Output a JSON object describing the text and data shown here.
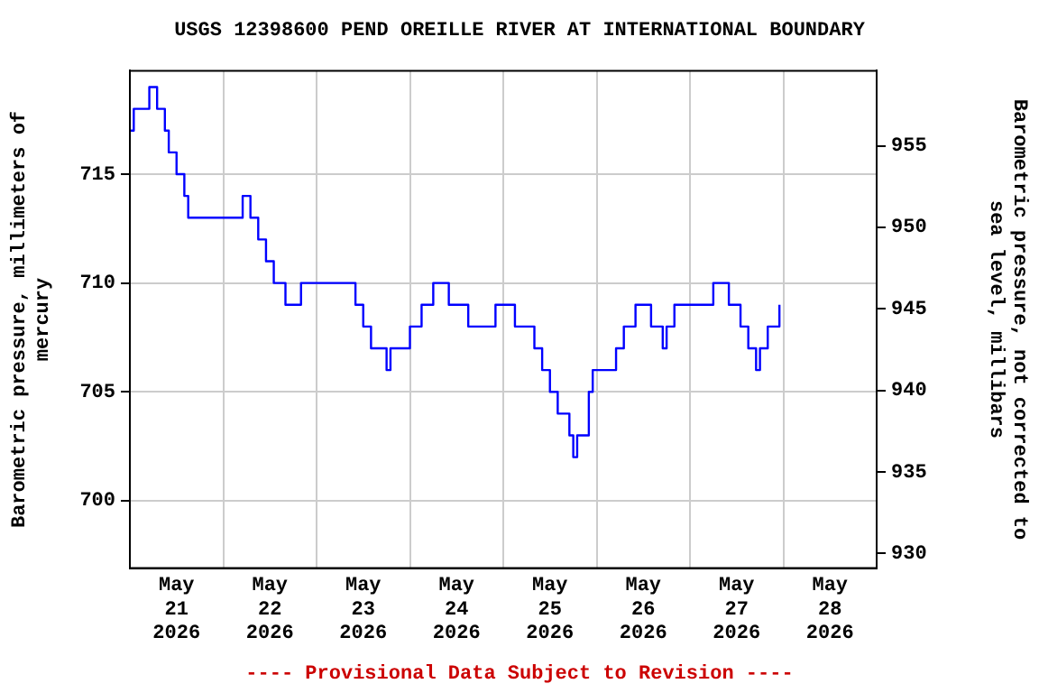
{
  "chart_data": {
    "type": "step",
    "title": "USGS 12398600 PEND OREILLE RIVER AT INTERNATIONAL BOUNDARY",
    "ylabel": "Barometric pressure, millimeters of mercury",
    "y2label": "Barometric pressure, not corrected to sea level, millibars",
    "annotations": [
      "---- Provisional Data Subject to Revision ----"
    ],
    "x": [
      "2026-05-21T00:00",
      "2026-05-21T01:00",
      "2026-05-21T05:00",
      "2026-05-21T07:00",
      "2026-05-21T09:00",
      "2026-05-21T10:00",
      "2026-05-21T12:00",
      "2026-05-21T14:00",
      "2026-05-21T15:00",
      "2026-05-22T05:00",
      "2026-05-22T07:00",
      "2026-05-22T09:00",
      "2026-05-22T11:00",
      "2026-05-22T13:00",
      "2026-05-22T16:00",
      "2026-05-22T20:00",
      "2026-05-23T10:00",
      "2026-05-23T12:00",
      "2026-05-23T14:00",
      "2026-05-23T18:00",
      "2026-05-23T19:00",
      "2026-05-24T00:00",
      "2026-05-24T03:00",
      "2026-05-24T06:00",
      "2026-05-24T10:00",
      "2026-05-24T15:00",
      "2026-05-24T22:00",
      "2026-05-25T03:00",
      "2026-05-25T08:00",
      "2026-05-25T10:00",
      "2026-05-25T12:00",
      "2026-05-25T14:00",
      "2026-05-25T17:00",
      "2026-05-25T18:00",
      "2026-05-25T19:00",
      "2026-05-25T22:00",
      "2026-05-25T23:00",
      "2026-05-26T05:00",
      "2026-05-26T07:00",
      "2026-05-26T10:00",
      "2026-05-26T14:00",
      "2026-05-26T17:00",
      "2026-05-26T18:00",
      "2026-05-26T20:00",
      "2026-05-27T06:00",
      "2026-05-27T10:00",
      "2026-05-27T13:00",
      "2026-05-27T15:00",
      "2026-05-27T17:00",
      "2026-05-27T18:00",
      "2026-05-27T20:00",
      "2026-05-27T23:00"
    ],
    "series": [
      {
        "color": "#0000ff",
        "values": [
          717,
          718,
          719,
          718,
          717,
          716,
          715,
          714,
          713,
          714,
          713,
          712,
          711,
          710,
          709,
          710,
          709,
          708,
          707,
          706,
          707,
          708,
          709,
          710,
          709,
          708,
          709,
          708,
          707,
          706,
          705,
          704,
          703,
          702,
          703,
          705,
          706,
          707,
          708,
          709,
          708,
          707,
          708,
          709,
          710,
          709,
          708,
          707,
          706,
          707,
          708,
          709
        ]
      }
    ],
    "xlim": [
      "2026-05-21",
      "2026-05-29"
    ],
    "xticks": [
      {
        "value": "2026-05-21T12:00",
        "label": "May 21 2026"
      },
      {
        "value": "2026-05-22",
        "label": null
      },
      {
        "value": "2026-05-22T12:00",
        "label": "May 22 2026"
      },
      {
        "value": "2026-05-23",
        "label": null
      },
      {
        "value": "2026-05-23T12:00",
        "label": "May 23 2026"
      },
      {
        "value": "2026-05-24",
        "label": null
      },
      {
        "value": "2026-05-24T12:00",
        "label": "May 24 2026"
      },
      {
        "value": "2026-05-25",
        "label": null
      },
      {
        "value": "2026-05-25T12:00",
        "label": "May 25 2026"
      },
      {
        "value": "2026-05-26",
        "label": null
      },
      {
        "value": "2026-05-26T12:00",
        "label": "May 26 2026"
      },
      {
        "value": "2026-05-27",
        "label": null
      },
      {
        "value": "2026-05-27T12:00",
        "label": "May 27 2026"
      },
      {
        "value": "2026-05-28",
        "label": null
      },
      {
        "value": "2026-05-28T12:00",
        "label": "May 28 2026"
      }
    ],
    "ylim": [
      696.9,
      719.75
    ],
    "yticks": [
      700,
      705,
      710,
      715
    ],
    "y2lim": [
      929.1,
      959.6
    ],
    "y2ticks": [
      930,
      935,
      940,
      945,
      950,
      955
    ],
    "grid": true,
    "legend": false,
    "marker": "none",
    "line_style": "solid"
  }
}
